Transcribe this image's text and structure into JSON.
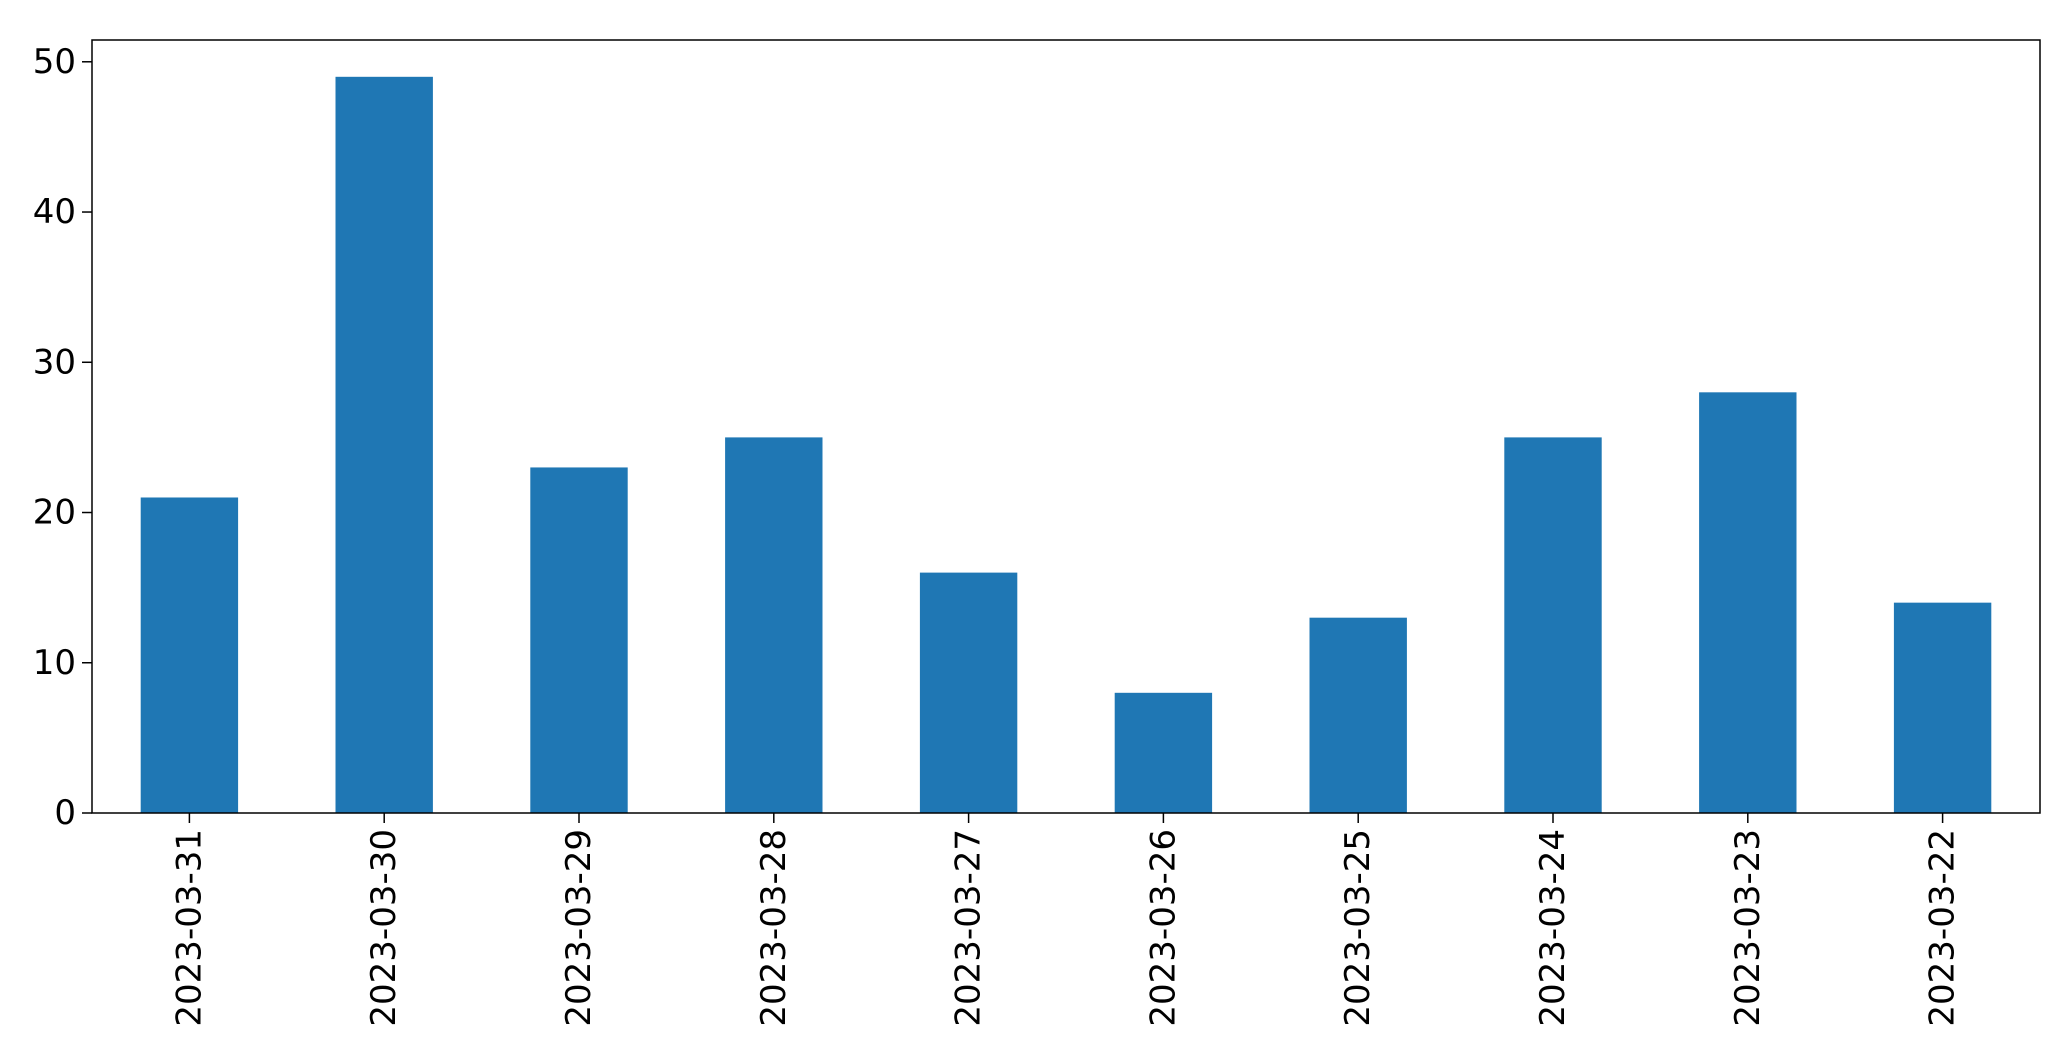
{
  "chart_data": {
    "type": "bar",
    "categories": [
      "2023-03-31",
      "2023-03-30",
      "2023-03-29",
      "2023-03-28",
      "2023-03-27",
      "2023-03-26",
      "2023-03-25",
      "2023-03-24",
      "2023-03-23",
      "2023-03-22"
    ],
    "values": [
      21,
      49,
      23,
      25,
      16,
      8,
      13,
      25,
      28,
      14
    ],
    "title": "",
    "xlabel": "",
    "ylabel": "",
    "ylim": [
      0,
      51.45
    ],
    "yticks": [
      0,
      10,
      20,
      30,
      40,
      50
    ],
    "grid": false,
    "bar_color": "#1f77b4"
  }
}
